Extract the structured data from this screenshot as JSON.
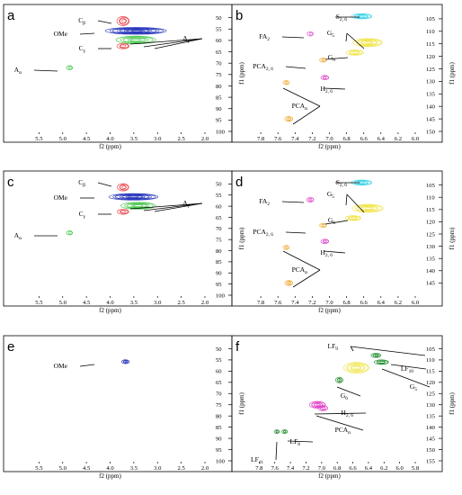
{
  "chart_data": [
    {
      "panel": "a",
      "type": "scatter",
      "xlabel": "f2 (ppm)",
      "ylabel": "f1 (ppm)",
      "xlim": [
        6.0,
        2.0
      ],
      "ylim": [
        45,
        100
      ],
      "xticks": [
        "5.5",
        "5.0",
        "4.5",
        "4.0",
        "3.5",
        "3.0",
        "2.5",
        "2.0"
      ],
      "yticks": [
        "50",
        "55",
        "60",
        "65",
        "70",
        "75",
        "80",
        "85",
        "90",
        "95",
        "100"
      ],
      "signals": [
        {
          "name": "Cβ",
          "color": "#e8383c",
          "x": 3.72,
          "y": 51.5,
          "w": 0.22,
          "h": 3.2,
          "rings": 4
        },
        {
          "name": "OMe",
          "color": "#1f2fb8",
          "x": 3.45,
          "y": 55.8,
          "w": 1.25,
          "h": 2.2,
          "rings": 8
        },
        {
          "name": "Aγ",
          "color": "#34c23a",
          "x": 3.45,
          "y": 59.8,
          "w": 0.8,
          "h": 2.6,
          "rings": 5
        },
        {
          "name": "Cγ",
          "color": "#e8383c",
          "x": 3.72,
          "y": 62.5,
          "w": 0.22,
          "h": 1.6,
          "rings": 3
        },
        {
          "name": "Aα",
          "color": "#34c23a",
          "x": 4.85,
          "y": 72.0,
          "w": 0.09,
          "h": 1.0,
          "rings": 2
        }
      ],
      "annotations": [
        {
          "text": "C",
          "sub": "β",
          "target": "Cβ"
        },
        {
          "text": "OMe",
          "sub": "",
          "target": "OMe"
        },
        {
          "text": "C",
          "sub": "γ",
          "target": "Cγ"
        },
        {
          "text": "A",
          "sub": "γ",
          "target": "Aγ"
        },
        {
          "text": "A",
          "sub": "α",
          "target": "Aα"
        }
      ]
    },
    {
      "panel": "b",
      "type": "scatter",
      "xlabel": "f2 (ppm)",
      "ylabel": "f1 (ppm)",
      "xlim": [
        8.0,
        6.0
      ],
      "ylim": [
        100,
        150
      ],
      "xticks": [
        "7.8",
        "7.6",
        "7.4",
        "7.2",
        "7.0",
        "6.8",
        "6.6",
        "6.4",
        "6.2",
        "6.0"
      ],
      "yticks": [
        "105",
        "110",
        "115",
        "120",
        "125",
        "130",
        "135",
        "140",
        "145",
        "150"
      ],
      "signals": [
        {
          "name": "S2,6",
          "color": "#39d4e6",
          "x": 6.62,
          "y": 104.0,
          "w": 0.22,
          "h": 1.4,
          "rings": 5
        },
        {
          "name": "FA2",
          "color": "#d63fc9",
          "x": 7.22,
          "y": 111.0,
          "w": 0.05,
          "h": 1.0,
          "rings": 2
        },
        {
          "name": "G5",
          "color": "#f0e23a",
          "x": 6.55,
          "y": 114.5,
          "w": 0.32,
          "h": 2.5,
          "rings": 6
        },
        {
          "name": "G6",
          "color": "#f0e23a",
          "x": 6.7,
          "y": 118.5,
          "w": 0.18,
          "h": 1.4,
          "rings": 4
        },
        {
          "name": "PCA2,6",
          "color": "#f2a833",
          "x": 7.07,
          "y": 121.5,
          "w": 0.06,
          "h": 0.9,
          "rings": 3
        },
        {
          "name": "H2,6",
          "color": "#d63fc9",
          "x": 7.05,
          "y": 128.5,
          "w": 0.07,
          "h": 1.0,
          "rings": 3
        },
        {
          "name": "PCAα",
          "color": "#f2a833",
          "x": 7.5,
          "y": 130.5,
          "w": 0.05,
          "h": 1.0,
          "rings": 3
        },
        {
          "name": "PCAα",
          "color": "#f2a833",
          "x": 7.47,
          "y": 145.0,
          "w": 0.07,
          "h": 1.3,
          "rings": 4
        }
      ],
      "annotations": [
        {
          "text": "S",
          "sub": "2, 6",
          "target": "S2,6"
        },
        {
          "text": "FA",
          "sub": "2",
          "target": "FA2"
        },
        {
          "text": "G",
          "sub": "5",
          "target": "G5"
        },
        {
          "text": "G",
          "sub": "6",
          "target": "G6"
        },
        {
          "text": "PCA",
          "sub": "2, 6",
          "target": "PCA2,6"
        },
        {
          "text": "H",
          "sub": "2, 6",
          "target": "H2,6"
        },
        {
          "text": "PCA",
          "sub": "α",
          "target": "PCAα"
        }
      ]
    },
    {
      "panel": "c",
      "type": "scatter",
      "xlabel": "f2 (ppm)",
      "ylabel": "f1 (ppm)",
      "xlim": [
        6.0,
        2.0
      ],
      "ylim": [
        45,
        100
      ],
      "xticks": [
        "5.5",
        "5.0",
        "4.5",
        "4.0",
        "3.5",
        "3.0",
        "2.5",
        "2.0"
      ],
      "yticks": [
        "50",
        "55",
        "60",
        "65",
        "70",
        "75",
        "80",
        "85",
        "90",
        "95",
        "100"
      ],
      "signals": [
        {
          "name": "Cβ",
          "color": "#e8383c",
          "x": 3.72,
          "y": 51.5,
          "w": 0.2,
          "h": 2.5,
          "rings": 4
        },
        {
          "name": "OMe",
          "color": "#1f2fb8",
          "x": 3.5,
          "y": 55.8,
          "w": 1.0,
          "h": 2.1,
          "rings": 7
        },
        {
          "name": "Aγ",
          "color": "#34c23a",
          "x": 3.4,
          "y": 59.8,
          "w": 0.7,
          "h": 2.2,
          "rings": 5
        },
        {
          "name": "Cγ",
          "color": "#e8383c",
          "x": 3.72,
          "y": 62.5,
          "w": 0.2,
          "h": 1.5,
          "rings": 3
        },
        {
          "name": "Aα",
          "color": "#34c23a",
          "x": 4.85,
          "y": 72.0,
          "w": 0.09,
          "h": 1.0,
          "rings": 2
        }
      ],
      "annotations": [
        {
          "text": "C",
          "sub": "β",
          "target": "Cβ"
        },
        {
          "text": "OMe",
          "sub": "",
          "target": "OMe"
        },
        {
          "text": "C",
          "sub": "γ",
          "target": "Cγ"
        },
        {
          "text": "A",
          "sub": "γ",
          "target": "Aγ"
        },
        {
          "text": "A",
          "sub": "α",
          "target": "Aα"
        }
      ]
    },
    {
      "panel": "d",
      "type": "scatter",
      "xlabel": "f2 (ppm)",
      "ylabel": "f1 (ppm)",
      "xlim": [
        8.0,
        6.0
      ],
      "ylim": [
        100,
        150
      ],
      "xticks": [
        "7.8",
        "7.6",
        "7.4",
        "7.2",
        "7.0",
        "6.8",
        "6.6",
        "6.4",
        "6.2",
        "6.0"
      ],
      "yticks": [
        "105",
        "110",
        "115",
        "120",
        "125",
        "130",
        "135",
        "140",
        "145"
      ],
      "signals": [
        {
          "name": "S2,6",
          "color": "#39d4e6",
          "x": 6.62,
          "y": 104.0,
          "w": 0.22,
          "h": 1.4,
          "rings": 5
        },
        {
          "name": "FA2",
          "color": "#d63fc9",
          "x": 7.22,
          "y": 111.0,
          "w": 0.06,
          "h": 1.2,
          "rings": 3
        },
        {
          "name": "G5",
          "color": "#f0e23a",
          "x": 6.55,
          "y": 114.5,
          "w": 0.34,
          "h": 2.5,
          "rings": 6
        },
        {
          "name": "G6",
          "color": "#f0e23a",
          "x": 6.72,
          "y": 118.5,
          "w": 0.16,
          "h": 1.3,
          "rings": 4
        },
        {
          "name": "PCA2,6",
          "color": "#f2a833",
          "x": 7.07,
          "y": 121.5,
          "w": 0.06,
          "h": 0.9,
          "rings": 3
        },
        {
          "name": "H2,6",
          "color": "#d63fc9",
          "x": 7.05,
          "y": 128.0,
          "w": 0.07,
          "h": 1.1,
          "rings": 3
        },
        {
          "name": "PCAα",
          "color": "#f2a833",
          "x": 7.5,
          "y": 130.5,
          "w": 0.05,
          "h": 1.0,
          "rings": 3
        },
        {
          "name": "PCAα",
          "color": "#f2a833",
          "x": 7.47,
          "y": 145.0,
          "w": 0.07,
          "h": 1.3,
          "rings": 4
        }
      ],
      "annotations": [
        {
          "text": "S",
          "sub": "2, 6",
          "target": "S2,6"
        },
        {
          "text": "FA",
          "sub": "2",
          "target": "FA2"
        },
        {
          "text": "G",
          "sub": "5",
          "target": "G5"
        },
        {
          "text": "G",
          "sub": "6",
          "target": "G6"
        },
        {
          "text": "PCA",
          "sub": "2, 6",
          "target": "PCA2,6"
        },
        {
          "text": "H",
          "sub": "2, 6",
          "target": "H2,6"
        },
        {
          "text": "PCA",
          "sub": "α",
          "target": "PCAα"
        }
      ]
    },
    {
      "panel": "e",
      "type": "scatter",
      "xlabel": "f2 (ppm)",
      "ylabel": "f1 (ppm)",
      "xlim": [
        6.0,
        2.0
      ],
      "ylim": [
        45,
        100
      ],
      "xticks": [
        "5.5",
        "5.0",
        "4.5",
        "4.0",
        "3.5",
        "3.0",
        "2.5",
        "2.0"
      ],
      "yticks": [
        "50",
        "55",
        "60",
        "65",
        "70",
        "75",
        "80",
        "85",
        "90",
        "95",
        "100"
      ],
      "signals": [
        {
          "name": "OMe",
          "color": "#1f2fb8",
          "x": 3.67,
          "y": 55.8,
          "w": 0.12,
          "h": 0.9,
          "rings": 4
        }
      ],
      "annotations": [
        {
          "text": "OMe",
          "sub": "",
          "target": "OMe"
        }
      ]
    },
    {
      "panel": "f",
      "type": "scatter",
      "xlabel": "f2 (ppm)",
      "ylabel": "f1 (ppm)",
      "xlim": [
        8.0,
        5.8
      ],
      "ylim": [
        100,
        155
      ],
      "xticks": [
        "7.8",
        "7.6",
        "7.4",
        "7.2",
        "7.0",
        "6.8",
        "6.6",
        "6.4",
        "6.2",
        "6.0",
        "5.8"
      ],
      "yticks": [
        "105",
        "110",
        "115",
        "120",
        "125",
        "130",
        "135",
        "140",
        "145",
        "150",
        "155"
      ],
      "signals": [
        {
          "name": "LF9",
          "color": "#1e8c2a",
          "x": 6.3,
          "y": 108.0,
          "w": 0.1,
          "h": 1.1,
          "rings": 4
        },
        {
          "name": "LF10",
          "color": "#1e8c2a",
          "x": 6.23,
          "y": 111.0,
          "w": 0.16,
          "h": 1.2,
          "rings": 4
        },
        {
          "name": "G5",
          "color": "#f0e23a",
          "x": 6.55,
          "y": 113.5,
          "w": 0.3,
          "h": 4.0,
          "rings": 6
        },
        {
          "name": "G6",
          "color": "#1e8c2a",
          "x": 6.77,
          "y": 119.0,
          "w": 0.07,
          "h": 1.7,
          "rings": 4
        },
        {
          "name": "PCAα",
          "color": "#e040c8",
          "x": 7.05,
          "y": 130.0,
          "w": 0.18,
          "h": 2.2,
          "rings": 6
        },
        {
          "name": "H2,6",
          "color": "#e040c8",
          "x": 6.98,
          "y": 131.5,
          "w": 0.1,
          "h": 1.6,
          "rings": 4
        },
        {
          "name": "LF8",
          "color": "#1e8c2a",
          "x": 7.47,
          "y": 142.0,
          "w": 0.05,
          "h": 0.8,
          "rings": 3
        },
        {
          "name": "LF11",
          "color": "#1e8c2a",
          "x": 7.57,
          "y": 142.0,
          "w": 0.04,
          "h": 0.8,
          "rings": 3
        }
      ],
      "annotations": [
        {
          "text": "LF",
          "sub": "9",
          "target": "LF9"
        },
        {
          "text": "LF",
          "sub": "10",
          "target": "LF10"
        },
        {
          "text": "G",
          "sub": "5",
          "target": "G5"
        },
        {
          "text": "G",
          "sub": "6",
          "target": "G6"
        },
        {
          "text": "H",
          "sub": "2, 6",
          "target": "H2,6"
        },
        {
          "text": "PCA",
          "sub": "α",
          "target": "PCAα"
        },
        {
          "text": "LF",
          "sub": "8",
          "target": "LF8"
        },
        {
          "text": "LF",
          "sub": "11",
          "target": "LF11"
        }
      ]
    }
  ]
}
